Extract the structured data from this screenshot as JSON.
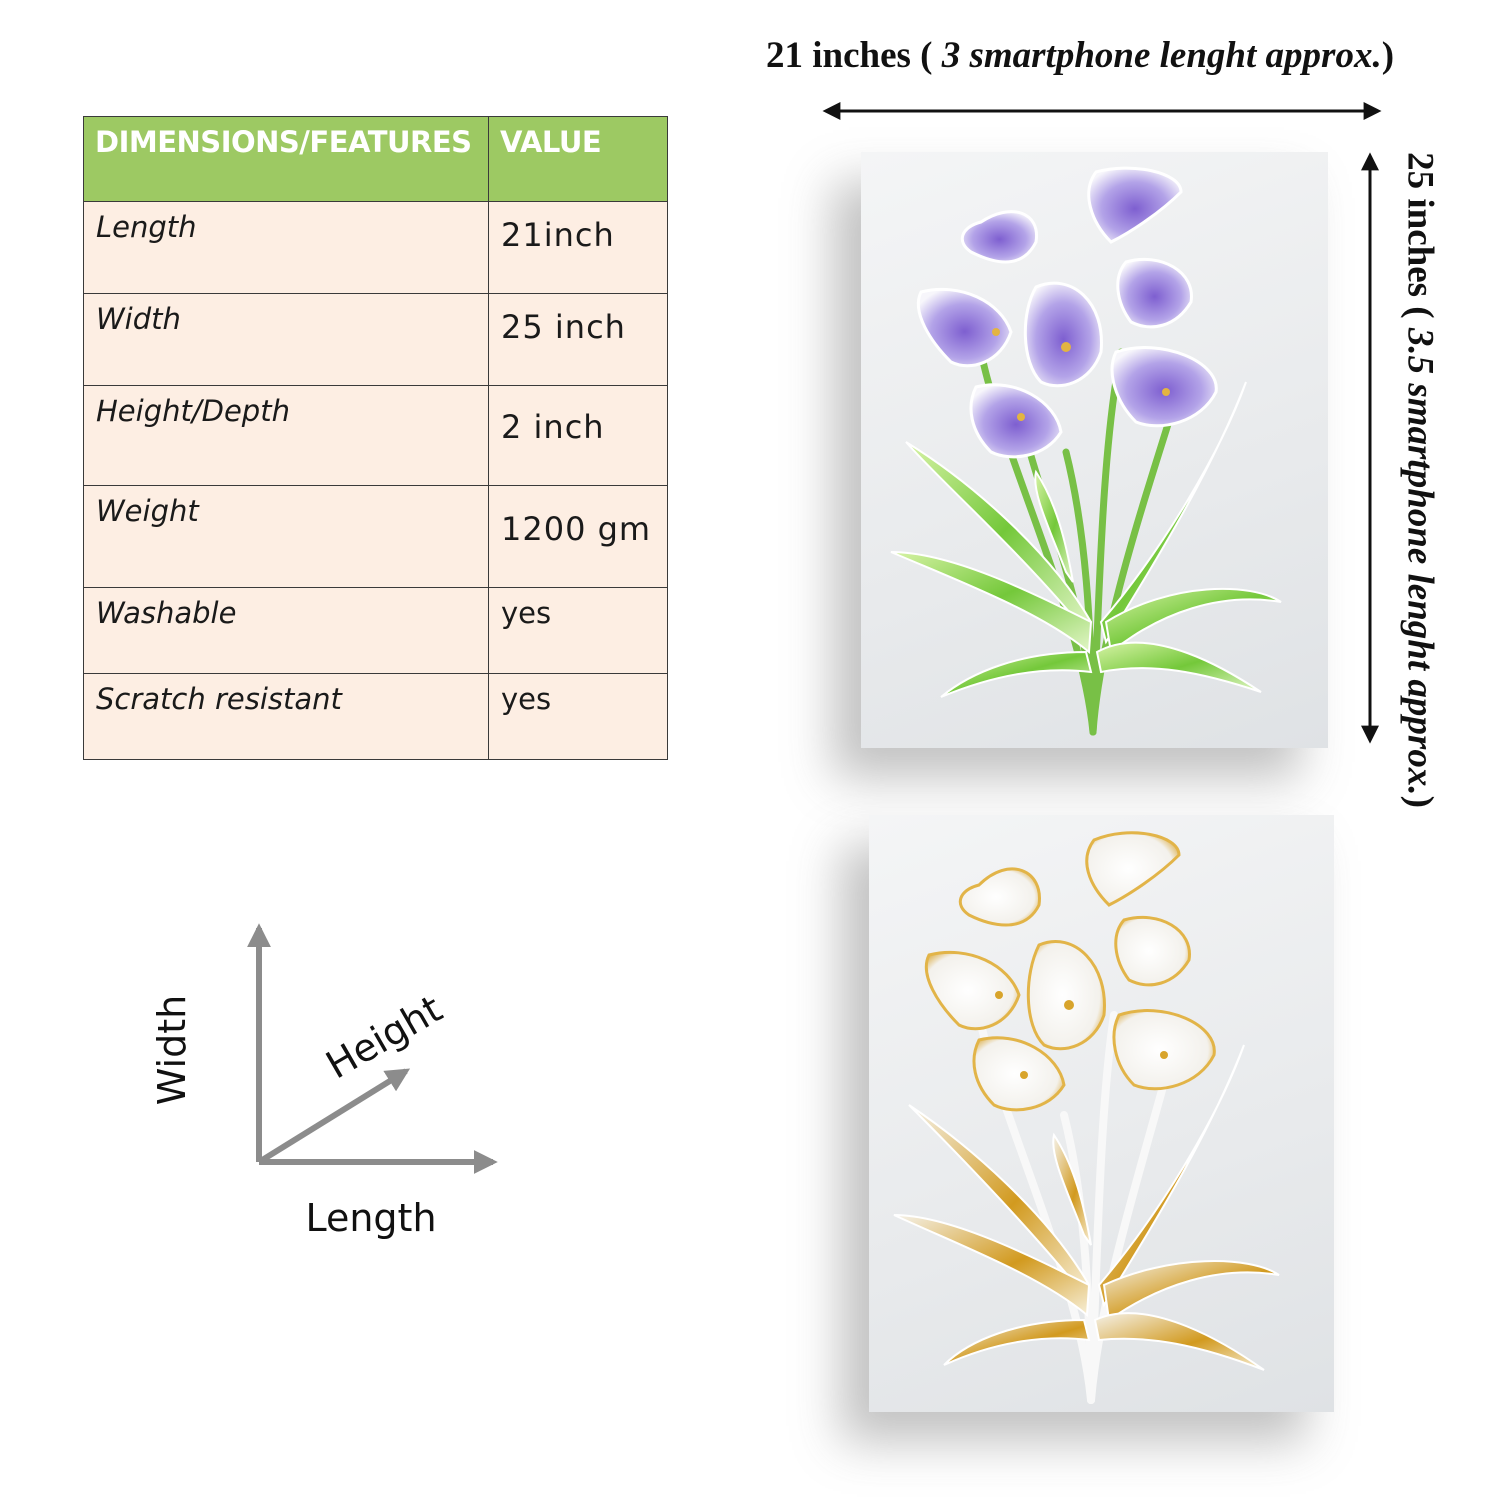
{
  "table": {
    "header_feature": "DIMENSIONS/FEATURES",
    "header_value": "VALUE",
    "rows": [
      {
        "feature": "Length",
        "value": "21inch"
      },
      {
        "feature": "Width",
        "value": "25 inch"
      },
      {
        "feature": "Height/Depth",
        "value": "2 inch"
      },
      {
        "feature": "Weight",
        "value": "1200 gm"
      },
      {
        "feature": "Washable",
        "value": "yes"
      },
      {
        "feature": "Scratch resistant",
        "value": "yes"
      }
    ]
  },
  "dimensions": {
    "top_main": "21 inches (",
    "top_italic": " 3 smartphone lenght approx.",
    "top_end": ")",
    "side_main": "25 inches (",
    "side_italic": " 3.5 smartphone lenght approx.",
    "side_end": ")"
  },
  "axis": {
    "width_label": "Width",
    "height_label": "Height",
    "length_label": "Length"
  },
  "colors": {
    "header_bg": "#9dc963",
    "row_bg": "#fdeee3",
    "flower_purple": "#a48ee0",
    "flower_gold": "#d7a62a",
    "leaf_green": "#7fcf3a"
  }
}
